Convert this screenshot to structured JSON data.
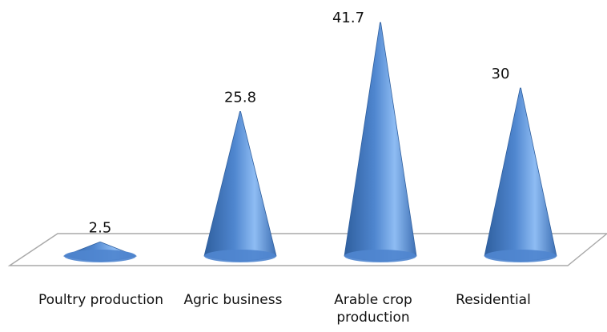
{
  "chart_data": {
    "type": "bar",
    "shape": "cone",
    "categories": [
      "Poultry production",
      "Agric business",
      "Arable crop production",
      "Residential"
    ],
    "values": [
      2.5,
      25.8,
      41.7,
      30
    ],
    "value_labels": [
      "2.5",
      "25.8",
      "41.7",
      "30"
    ],
    "ylim": [
      0,
      44
    ],
    "grid": false,
    "colors": {
      "cone_dark": "#2f5f9e",
      "cone_mid": "#4f86cf",
      "cone_light": "#8ebcf3",
      "floor_stroke": "#a8a8a8"
    }
  }
}
